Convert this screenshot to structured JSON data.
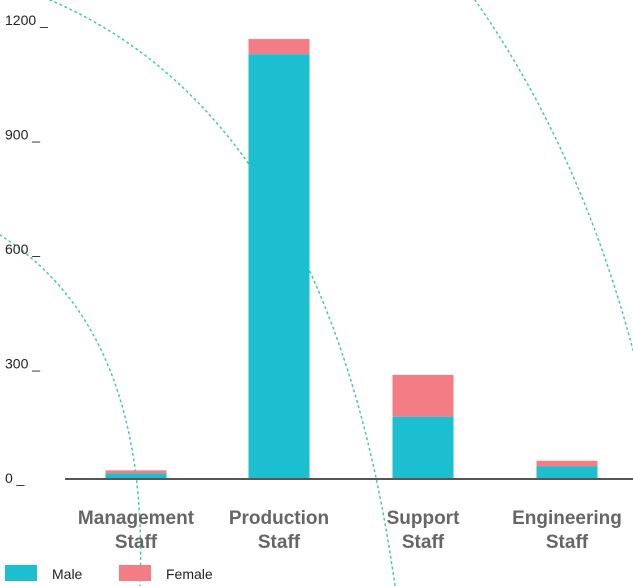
{
  "chart_data": {
    "type": "bar",
    "stacked": true,
    "categories": [
      [
        "Management",
        "Staff"
      ],
      [
        "Production",
        "Staff"
      ],
      [
        "Support",
        "Staff"
      ],
      [
        "Engineering",
        "Staff"
      ]
    ],
    "series": [
      {
        "name": "Male",
        "color": "#1bbfcf",
        "values": [
          12,
          1110,
          160,
          30
        ]
      },
      {
        "name": "Female",
        "color": "#f47c85",
        "values": [
          8,
          40,
          110,
          15
        ]
      }
    ],
    "y_ticks": [
      {
        "value": 0,
        "label": "0 _"
      },
      {
        "value": 300,
        "label": "300 _"
      },
      {
        "value": 600,
        "label": "600 _"
      },
      {
        "value": 900,
        "label": "900 _"
      },
      {
        "value": 1200,
        "label": "1200 _"
      }
    ],
    "ylim": [
      0,
      1200
    ],
    "legend_position": "bottom-left",
    "grid": false
  }
}
